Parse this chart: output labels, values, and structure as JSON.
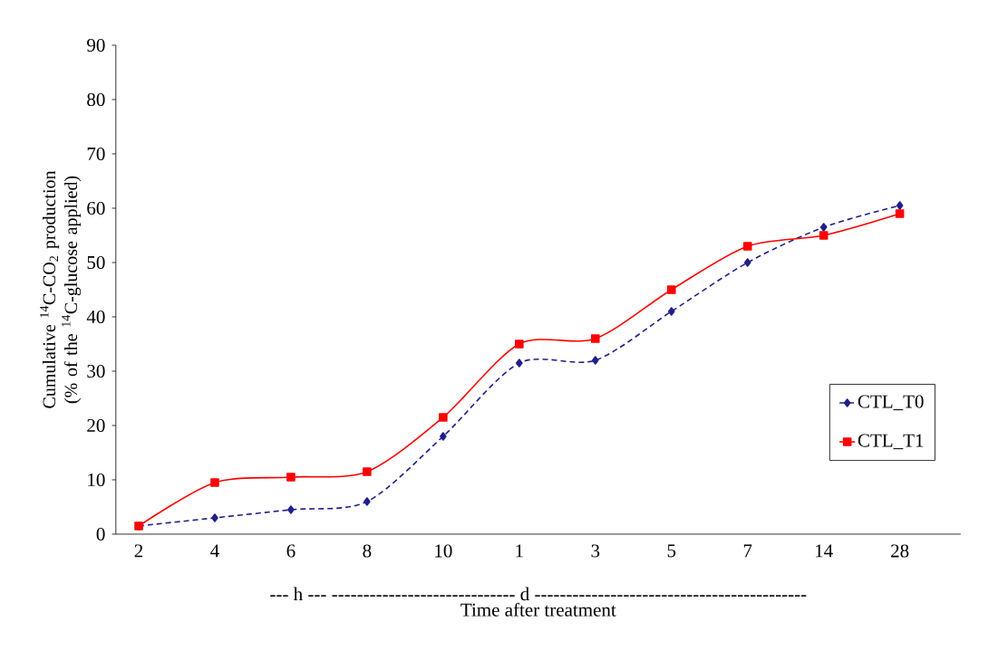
{
  "chart_data": {
    "type": "line",
    "xlabel": "Time after treatment",
    "ylabel": "Cumulative $^{14}$C-CO$_{2}$ production (% of the $^{14}$C-glucose applied)",
    "annotations": [
      "--- h --- ----------------------------- d -------------------------------------------"
    ],
    "categories": [
      "2",
      "4",
      "6",
      "8",
      "10",
      "1",
      "3",
      "5",
      "7",
      "14",
      "28"
    ],
    "ylim": [
      0,
      90
    ],
    "yticks": [
      0,
      10,
      20,
      30,
      40,
      50,
      60,
      70,
      80,
      90
    ],
    "grid": false,
    "legend": "bottom right",
    "series": [
      {
        "name": "CTL_T0",
        "color": "#1f1f8c",
        "marker": "diamond",
        "line_style": "dashed",
        "values": [
          1.5,
          3,
          4.5,
          6,
          18,
          31.5,
          32,
          41,
          50,
          56.5,
          60.5
        ]
      },
      {
        "name": "CTL_T1",
        "color": "#ff0000",
        "marker": "square",
        "line_style": "solid",
        "values": [
          1.5,
          9.5,
          10.5,
          11.5,
          21.5,
          35,
          36,
          45,
          53,
          55,
          59
        ]
      }
    ]
  }
}
